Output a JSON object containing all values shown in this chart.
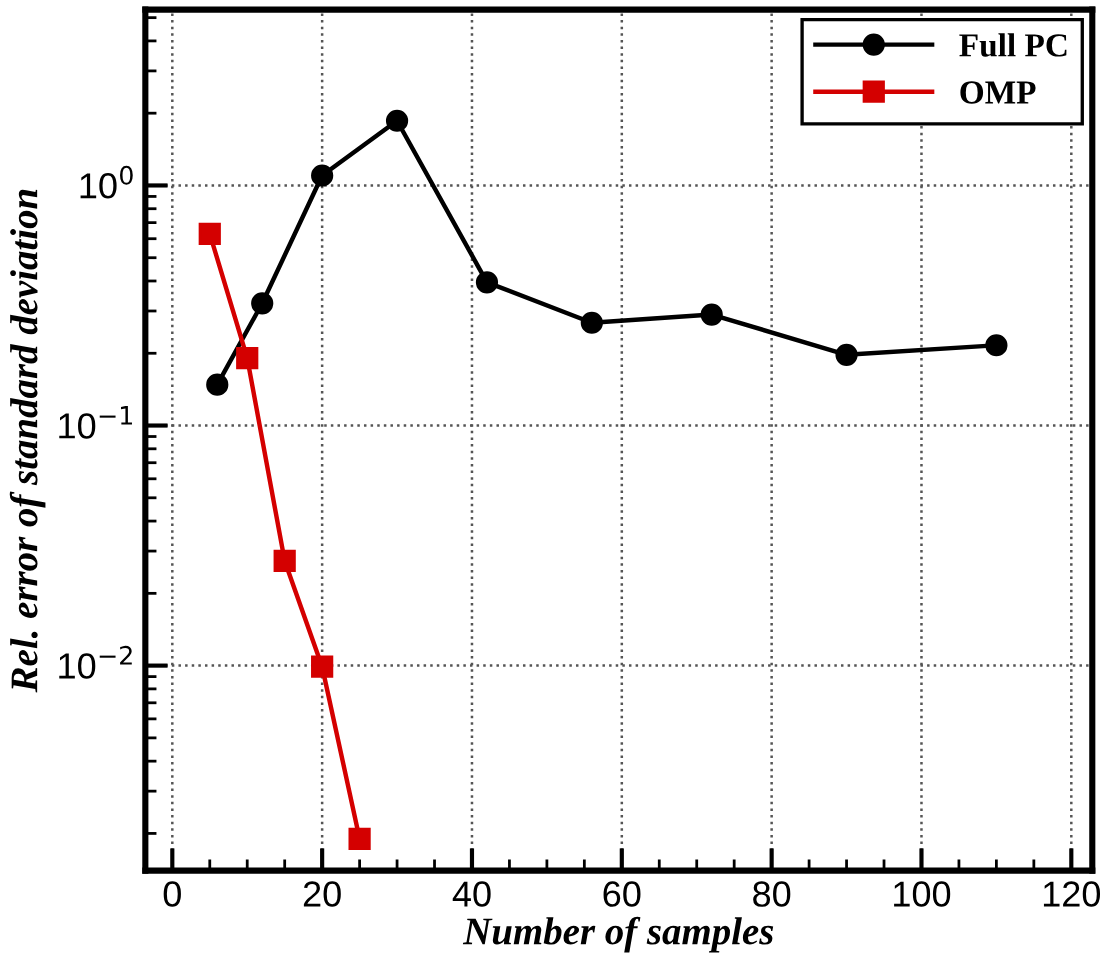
{
  "chart_data": {
    "type": "line",
    "xlabel": "Number of samples",
    "ylabel": "Rel. error of standard deviation",
    "log": "y",
    "grid": true,
    "legend": "top right",
    "line_style": "solid",
    "xlim": [
      -3.6,
      122.8
    ],
    "xticks": [
      0,
      20,
      40,
      60,
      80,
      100,
      120
    ],
    "ylim": [
      0.0014,
      5.4
    ],
    "yticks": [
      {
        "value": 0.01,
        "label": "10$^{−2}$"
      },
      {
        "value": 0.1,
        "label": "10$^{−1}$"
      },
      {
        "value": 1,
        "label": "10$^{0}$"
      }
    ],
    "series": [
      {
        "name": "Full PC",
        "color": "#000000",
        "marker": "circle",
        "x": [
          6,
          12,
          20,
          30,
          42,
          56,
          72,
          90,
          110
        ],
        "values": [
          0.148,
          0.323,
          1.1,
          1.86,
          0.395,
          0.268,
          0.29,
          0.197,
          0.216
        ]
      },
      {
        "name": "OMP",
        "color": "#d40000",
        "marker": "square",
        "x": [
          5,
          10,
          15,
          20,
          25
        ],
        "values": [
          0.629,
          0.191,
          0.0273,
          0.0099,
          0.0019
        ]
      }
    ]
  }
}
